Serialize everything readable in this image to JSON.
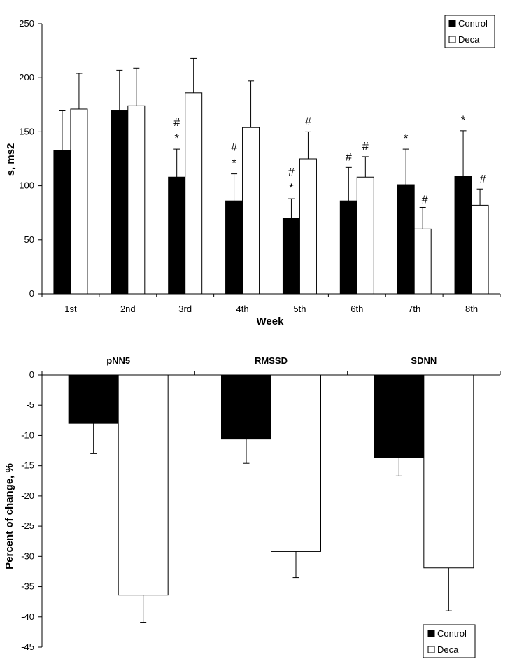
{
  "colors": {
    "control": "#000000",
    "deca": "#ffffff",
    "axis": "#000000"
  },
  "chart_data": [
    {
      "type": "bar",
      "title": "",
      "xlabel": "Week",
      "ylabel": "s, ms2",
      "ylim": [
        0,
        250
      ],
      "yticks": [
        0,
        50,
        100,
        150,
        200,
        250
      ],
      "categories": [
        "1st",
        "2nd",
        "3rd",
        "4th",
        "5th",
        "6th",
        "7th",
        "8th"
      ],
      "series": [
        {
          "name": "Control",
          "values": [
            133,
            170,
            108,
            86,
            70,
            86,
            101,
            109
          ],
          "errors": [
            37,
            37,
            26,
            25,
            18,
            31,
            33,
            42
          ],
          "marks": [
            "",
            "",
            "*",
            "*",
            "*",
            "",
            "*",
            "*"
          ]
        },
        {
          "name": "Deca",
          "values": [
            171,
            174,
            186,
            154,
            125,
            108,
            60,
            82
          ],
          "errors": [
            33,
            35,
            32,
            43,
            25,
            19,
            20,
            15
          ],
          "marks": [
            "",
            "",
            "",
            "",
            "",
            "",
            "",
            ""
          ]
        }
      ],
      "hash_marks": [
        {
          "category": "3rd",
          "series": "Control",
          "label": "#"
        },
        {
          "category": "4th",
          "series": "Control",
          "label": "#"
        },
        {
          "category": "5th",
          "series": "Control",
          "label": "#"
        },
        {
          "category": "5th",
          "series": "Deca",
          "label": "#"
        },
        {
          "category": "6th",
          "series": "Control",
          "label": "#"
        },
        {
          "category": "6th",
          "series": "Deca",
          "label": "#"
        },
        {
          "category": "7th",
          "series": "Deca",
          "label": "#"
        },
        {
          "category": "8th",
          "series": "Deca",
          "label": "#"
        }
      ],
      "legend": {
        "position": "top-right",
        "entries": [
          "Control",
          "Deca"
        ]
      }
    },
    {
      "type": "bar",
      "title": "",
      "xlabel": "",
      "ylabel": "Percent of change, %",
      "ylim": [
        -45,
        0
      ],
      "yticks": [
        0,
        -5,
        -10,
        -15,
        -20,
        -25,
        -30,
        -35,
        -40,
        -45
      ],
      "categories": [
        "pNN5",
        "RMSSD",
        "SDNN"
      ],
      "series": [
        {
          "name": "Control",
          "values": [
            -8,
            -10.6,
            -13.7
          ],
          "errors": [
            5,
            4,
            3
          ]
        },
        {
          "name": "Deca",
          "values": [
            -36.4,
            -29.2,
            -31.9
          ],
          "errors": [
            4.5,
            4.3,
            7.1
          ]
        }
      ],
      "legend": {
        "position": "bottom-right",
        "entries": [
          "Control",
          "Deca"
        ]
      }
    }
  ]
}
